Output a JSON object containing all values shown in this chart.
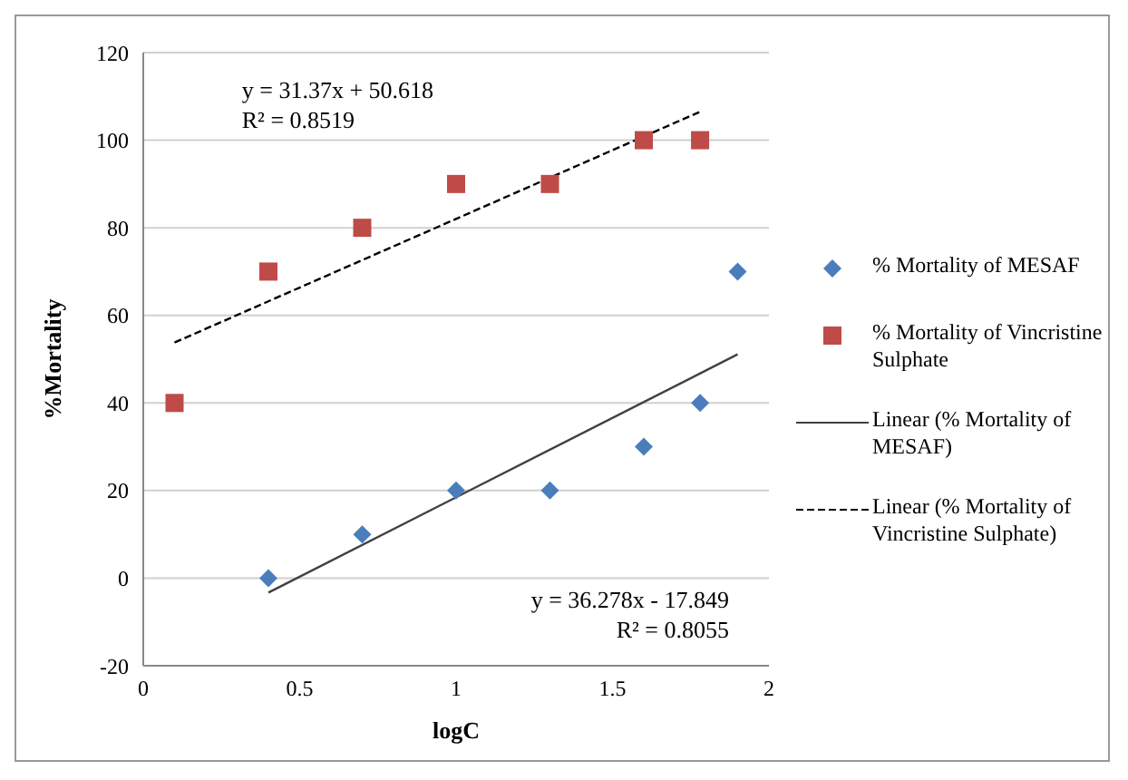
{
  "chart_data": {
    "type": "scatter",
    "xlabel": "logC",
    "ylabel": "%Mortality",
    "xlim": [
      0,
      2
    ],
    "xticks": [
      0,
      0.5,
      1,
      1.5,
      2
    ],
    "ylim": [
      -20,
      120
    ],
    "yticks": [
      -20,
      0,
      20,
      40,
      60,
      80,
      100,
      120
    ],
    "grid": "y",
    "legend": "right",
    "series": [
      {
        "name": "% Mortality of MESAF",
        "marker": "diamond",
        "color": "#4a7ebb",
        "x": [
          0.4,
          0.7,
          1.0,
          1.3,
          1.6,
          1.78,
          1.9
        ],
        "values": [
          0,
          10,
          20,
          20,
          30,
          40,
          70
        ]
      },
      {
        "name": "% Mortality of Vincristine Sulphate",
        "marker": "square",
        "color": "#be4b48",
        "x": [
          0.1,
          0.4,
          0.7,
          1.0,
          1.3,
          1.6,
          1.78
        ],
        "values": [
          40,
          70,
          80,
          90,
          90,
          100,
          100
        ]
      },
      {
        "name": "Linear (% Mortality of MESAF)",
        "type": "line",
        "line_style": "solid",
        "color": "#404040",
        "x": [
          0.4,
          1.9
        ],
        "values": [
          -3.3,
          51.1
        ]
      },
      {
        "name": "Linear (% Mortality of Vincristine Sulphate)",
        "type": "line",
        "line_style": "dashed",
        "color": "#000000",
        "x": [
          0.1,
          1.78
        ],
        "values": [
          53.8,
          106.5
        ]
      }
    ],
    "annotations": [
      "y = 31.37x + 50.618",
      "R² = 0.8519",
      "y = 36.278x - 17.849",
      "R² = 0.8055"
    ]
  }
}
